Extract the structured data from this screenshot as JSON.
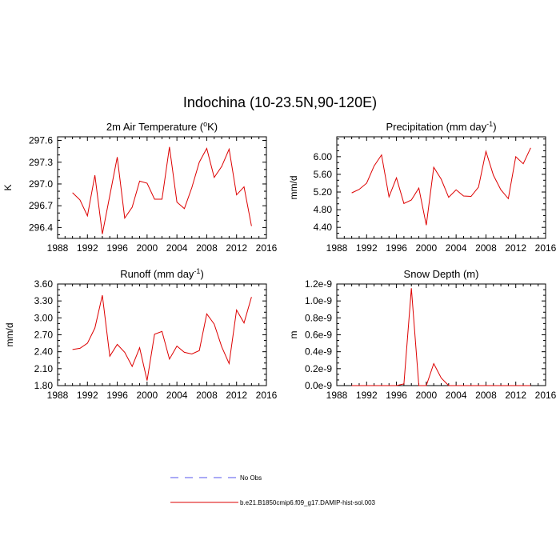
{
  "title": "Indochina (10-23.5N,90-120E)",
  "legend": [
    {
      "name": "No Obs",
      "color": "#5555ee",
      "dash": true
    },
    {
      "name": "b.e21.B1850cmip6.f09_g17.DAMIP-hist-sol.003",
      "color": "#dd0000",
      "dash": false
    }
  ],
  "chart_data": [
    {
      "type": "line",
      "title_main": "2m Air Temperature (",
      "title_sup": "o",
      "title_end": "K)",
      "ylabel": "K",
      "xlim": [
        1988,
        2016
      ],
      "xticks": [
        1988,
        1992,
        1996,
        2000,
        2004,
        2008,
        2012,
        2016
      ],
      "ylim": [
        296.25,
        297.65
      ],
      "yticks": [
        296.4,
        296.7,
        297.0,
        297.3,
        297.6
      ],
      "ytick_labels": [
        "296.4",
        "296.7",
        "297.0",
        "297.3",
        "297.6"
      ],
      "x": [
        1990,
        1991,
        1992,
        1993,
        1994,
        1995,
        1996,
        1997,
        1998,
        1999,
        2000,
        2001,
        2002,
        2003,
        2004,
        2005,
        2006,
        2007,
        2008,
        2009,
        2010,
        2011,
        2012,
        2013,
        2014
      ],
      "series": [
        {
          "name": "b.e21.B1850cmip6.f09_g17.DAMIP-hist-sol.003",
          "color": "#dd0000",
          "values": [
            296.88,
            296.78,
            296.56,
            297.12,
            296.31,
            296.84,
            297.37,
            296.53,
            296.68,
            297.04,
            297.01,
            296.79,
            296.79,
            297.51,
            296.75,
            296.66,
            296.95,
            297.3,
            297.49,
            297.09,
            297.24,
            297.48,
            296.85,
            296.96,
            296.42
          ]
        }
      ]
    },
    {
      "type": "line",
      "title_main": "Precipitation (mm day",
      "title_sup": "-1",
      "title_end": ")",
      "ylabel": "mm/d",
      "xlim": [
        1988,
        2016
      ],
      "xticks": [
        1988,
        1992,
        1996,
        2000,
        2004,
        2008,
        2012,
        2016
      ],
      "ylim": [
        4.15,
        6.45
      ],
      "yticks": [
        4.4,
        4.8,
        5.2,
        5.6,
        6.0
      ],
      "ytick_labels": [
        "4.40",
        "4.80",
        "5.20",
        "5.60",
        "6.00"
      ],
      "x": [
        1990,
        1991,
        1992,
        1993,
        1994,
        1995,
        1996,
        1997,
        1998,
        1999,
        2000,
        2001,
        2002,
        2003,
        2004,
        2005,
        2006,
        2007,
        2008,
        2009,
        2010,
        2011,
        2012,
        2013,
        2014
      ],
      "series": [
        {
          "name": "b.e21.B1850cmip6.f09_g17.DAMIP-hist-sol.003",
          "color": "#dd0000",
          "values": [
            5.18,
            5.26,
            5.4,
            5.79,
            6.04,
            5.09,
            5.52,
            4.94,
            5.02,
            5.29,
            4.45,
            5.76,
            5.49,
            5.08,
            5.25,
            5.11,
            5.1,
            5.31,
            6.12,
            5.58,
            5.25,
            5.05,
            6.0,
            5.84,
            6.2
          ]
        }
      ]
    },
    {
      "type": "line",
      "title_main": "Runoff (mm day",
      "title_sup": "-1",
      "title_end": ")",
      "ylabel": "mm/d",
      "xlim": [
        1988,
        2016
      ],
      "xticks": [
        1988,
        1992,
        1996,
        2000,
        2004,
        2008,
        2012,
        2016
      ],
      "ylim": [
        1.8,
        3.6
      ],
      "yticks": [
        1.8,
        2.1,
        2.4,
        2.7,
        3.0,
        3.3,
        3.6
      ],
      "ytick_labels": [
        "1.80",
        "2.10",
        "2.40",
        "2.70",
        "3.00",
        "3.30",
        "3.60"
      ],
      "x": [
        1990,
        1991,
        1992,
        1993,
        1994,
        1995,
        1996,
        1997,
        1998,
        1999,
        2000,
        2001,
        2002,
        2003,
        2004,
        2005,
        2006,
        2007,
        2008,
        2009,
        2010,
        2011,
        2012,
        2013,
        2014
      ],
      "series": [
        {
          "name": "b.e21.B1850cmip6.f09_g17.DAMIP-hist-sol.003",
          "color": "#dd0000",
          "values": [
            2.44,
            2.46,
            2.55,
            2.82,
            3.4,
            2.32,
            2.53,
            2.39,
            2.14,
            2.47,
            1.89,
            2.71,
            2.76,
            2.27,
            2.5,
            2.39,
            2.36,
            2.42,
            3.07,
            2.89,
            2.49,
            2.19,
            3.14,
            2.91,
            3.37
          ]
        }
      ]
    },
    {
      "type": "line",
      "title_main": "Snow Depth (m)",
      "title_sup": "",
      "title_end": "",
      "ylabel": "m",
      "xlim": [
        1988,
        2016
      ],
      "xticks": [
        1988,
        1992,
        1996,
        2000,
        2004,
        2008,
        2012,
        2016
      ],
      "ylim": [
        0,
        1.2e-09
      ],
      "yticks": [
        0,
        2e-10,
        4e-10,
        6e-10,
        8e-10,
        1e-09,
        1.2e-09
      ],
      "ytick_labels": [
        "0.0e-9",
        "0.2e-9",
        "0.4e-9",
        "0.6e-9",
        "0.8e-9",
        "1.0e-9",
        "1.2e-9"
      ],
      "x": [
        1990,
        1991,
        1992,
        1993,
        1994,
        1995,
        1996,
        1997,
        1998,
        1999,
        2000,
        2001,
        2002,
        2003,
        2004,
        2005,
        2006,
        2007,
        2008,
        2009,
        2010,
        2011,
        2012,
        2013,
        2014
      ],
      "series": [
        {
          "name": "b.e21.B1850cmip6.f09_g17.DAMIP-hist-sol.003",
          "color": "#dd0000",
          "values": [
            0,
            0,
            0,
            0,
            0,
            0,
            0,
            2e-11,
            1.15e-09,
            0,
            0,
            2.6e-10,
            9e-11,
            0,
            0,
            0,
            0,
            0,
            0,
            0,
            0,
            0,
            0,
            0,
            0
          ]
        }
      ]
    }
  ]
}
